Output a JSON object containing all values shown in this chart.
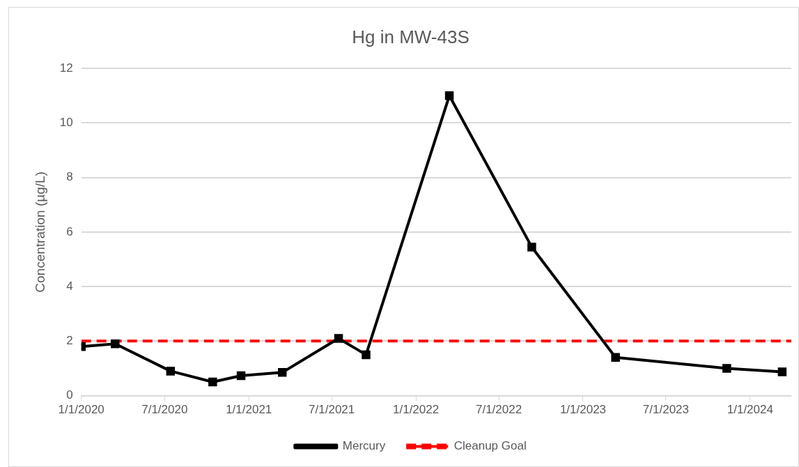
{
  "chart_data": {
    "type": "line",
    "title": "Hg in MW-43S",
    "ylabel": "Concentration (µg/L)",
    "x": [
      "2020-01-01",
      "2020-03-15",
      "2020-07-14",
      "2020-10-14",
      "2020-12-15",
      "2021-03-15",
      "2021-07-16",
      "2021-09-14",
      "2022-03-15",
      "2022-09-11",
      "2023-03-13",
      "2023-11-11",
      "2024-03-11"
    ],
    "series": [
      {
        "name": "Mercury",
        "color": "#000000",
        "values": [
          1.8,
          1.9,
          0.9,
          0.5,
          0.73,
          0.85,
          2.1,
          1.5,
          11,
          5.45,
          1.4,
          1.0,
          0.87
        ]
      }
    ],
    "ref_lines": [
      {
        "axis": "y",
        "value": 2,
        "label": "Cleanup Goal",
        "color": "#ff0000",
        "line_style": "dashed"
      }
    ],
    "xlim": [
      "2020-01-01",
      "2024-03-31"
    ],
    "xticks": [
      {
        "value": "2020-01-01",
        "label": "1/1/2020"
      },
      {
        "value": "2020-07-01",
        "label": "7/1/2020"
      },
      {
        "value": "2021-01-01",
        "label": "1/1/2021"
      },
      {
        "value": "2021-07-01",
        "label": "7/1/2021"
      },
      {
        "value": "2022-01-01",
        "label": "1/1/2022"
      },
      {
        "value": "2022-07-01",
        "label": "7/1/2022"
      },
      {
        "value": "2023-01-01",
        "label": "1/1/2023"
      },
      {
        "value": "2023-07-01",
        "label": "7/1/2023"
      },
      {
        "value": "2024-01-01",
        "label": "1/1/2024"
      }
    ],
    "ylim": [
      0,
      12
    ],
    "yticks": [
      0,
      2,
      4,
      6,
      8,
      10,
      12
    ],
    "grid": "y",
    "legend": "bottom",
    "marker": "square",
    "line_style": "solid"
  }
}
